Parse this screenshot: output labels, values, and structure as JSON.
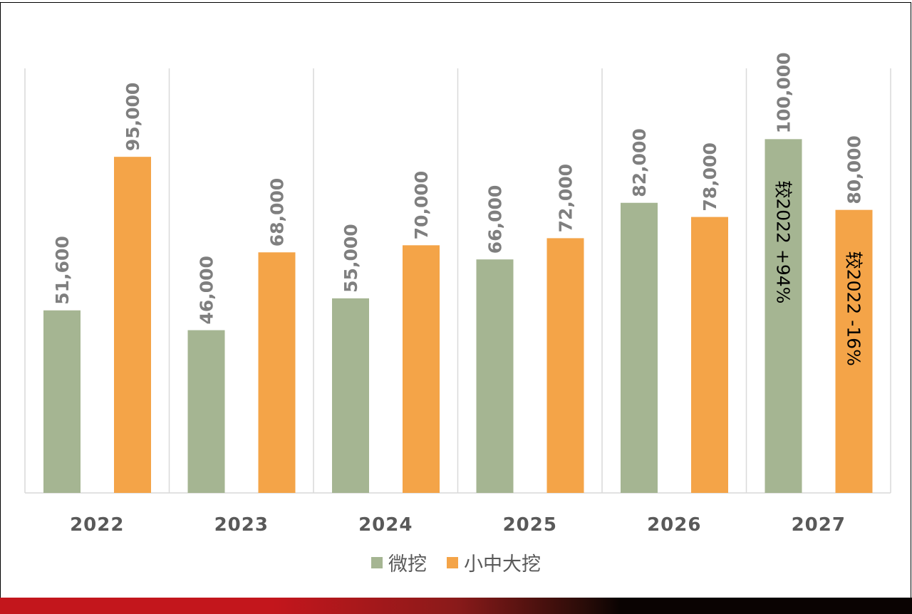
{
  "chart_data": {
    "type": "bar",
    "categories": [
      "2022",
      "2023",
      "2024",
      "2025",
      "2026",
      "2027"
    ],
    "series": [
      {
        "name": "微挖",
        "color": "#a5b592",
        "values": [
          51600,
          46000,
          55000,
          66000,
          82000,
          100000
        ],
        "labels": [
          "51,600",
          "46,000",
          "55,000",
          "66,000",
          "82,000",
          "100,000"
        ]
      },
      {
        "name": "小中大挖",
        "color": "#f4a448",
        "values": [
          95000,
          68000,
          70000,
          72000,
          78000,
          80000
        ],
        "labels": [
          "95,000",
          "68,000",
          "70,000",
          "72,000",
          "78,000",
          "80,000"
        ]
      }
    ],
    "annotations": [
      {
        "category": "2027",
        "series": "微挖",
        "text": "较2022 +94%"
      },
      {
        "category": "2027",
        "series": "小中大挖",
        "text": "较2022 -16%"
      }
    ],
    "ylim": [
      0,
      120000
    ],
    "grid": "vertical separators",
    "legend": "bottom-center",
    "title": "",
    "xlabel": "",
    "ylabel": ""
  }
}
